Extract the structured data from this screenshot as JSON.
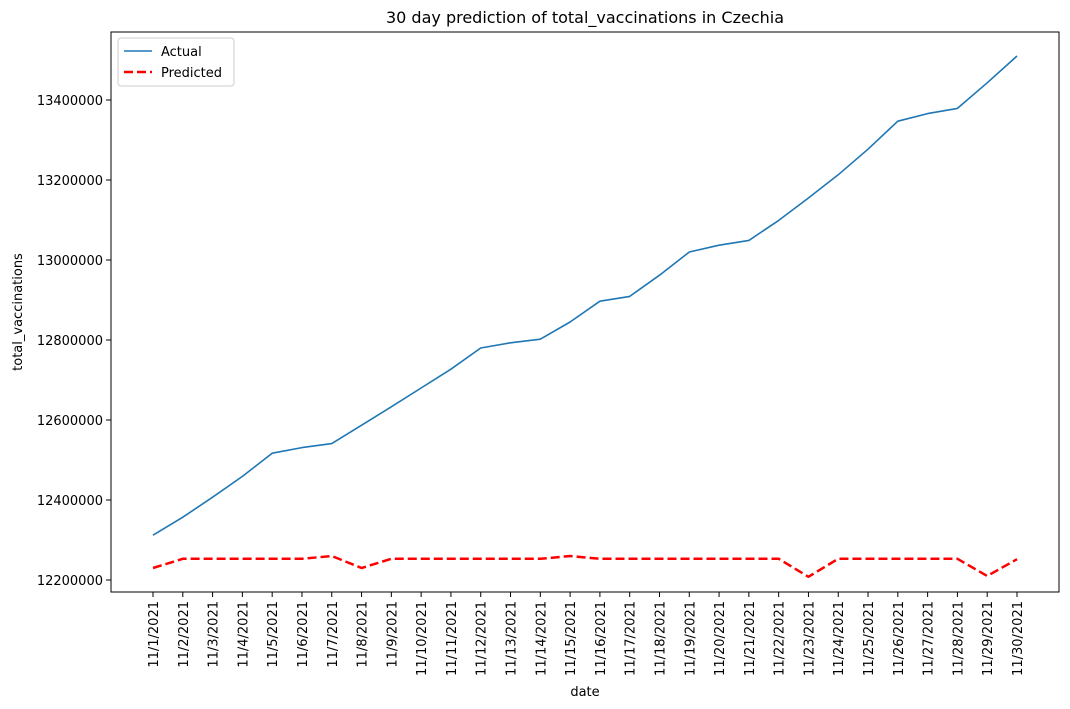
{
  "chart_data": {
    "type": "line",
    "title": "30 day prediction of total_vaccinations in Czechia",
    "xlabel": "date",
    "ylabel": "total_vaccinations",
    "categories": [
      "11/1/2021",
      "11/2/2021",
      "11/3/2021",
      "11/4/2021",
      "11/5/2021",
      "11/6/2021",
      "11/7/2021",
      "11/8/2021",
      "11/9/2021",
      "11/10/2021",
      "11/11/2021",
      "11/12/2021",
      "11/13/2021",
      "11/14/2021",
      "11/15/2021",
      "11/16/2021",
      "11/17/2021",
      "11/18/2021",
      "11/19/2021",
      "11/20/2021",
      "11/21/2021",
      "11/22/2021",
      "11/23/2021",
      "11/24/2021",
      "11/25/2021",
      "11/26/2021",
      "11/27/2021",
      "11/28/2021",
      "11/29/2021",
      "11/30/2021"
    ],
    "series": [
      {
        "name": "Actual",
        "color": "#1f77b4",
        "style": "solid",
        "values": [
          12312000,
          12357000,
          12407000,
          12459000,
          12517000,
          12531000,
          12541000,
          12587000,
          12633000,
          12680000,
          12727000,
          12780000,
          12793000,
          12802000,
          12845000,
          12897000,
          12909000,
          12962000,
          13020000,
          13037000,
          13049000,
          13099000,
          13155000,
          13213000,
          13277000,
          13347000,
          13366000,
          13379000,
          13443000,
          13510000
        ]
      },
      {
        "name": "Predicted",
        "color": "#ff0000",
        "style": "dashed",
        "values": [
          12230000,
          12253000,
          12253000,
          12253000,
          12253000,
          12253000,
          12260000,
          12230000,
          12253000,
          12253000,
          12253000,
          12253000,
          12253000,
          12253000,
          12260000,
          12253000,
          12253000,
          12253000,
          12253000,
          12253000,
          12253000,
          12253000,
          12208000,
          12253000,
          12253000,
          12253000,
          12253000,
          12253000,
          12210000,
          12252000
        ]
      }
    ],
    "yticks": [
      12200000,
      12400000,
      12600000,
      12800000,
      13000000,
      13200000,
      13400000
    ],
    "ylim": [
      12170000,
      13570000
    ],
    "grid": false,
    "legend": "top-left"
  }
}
